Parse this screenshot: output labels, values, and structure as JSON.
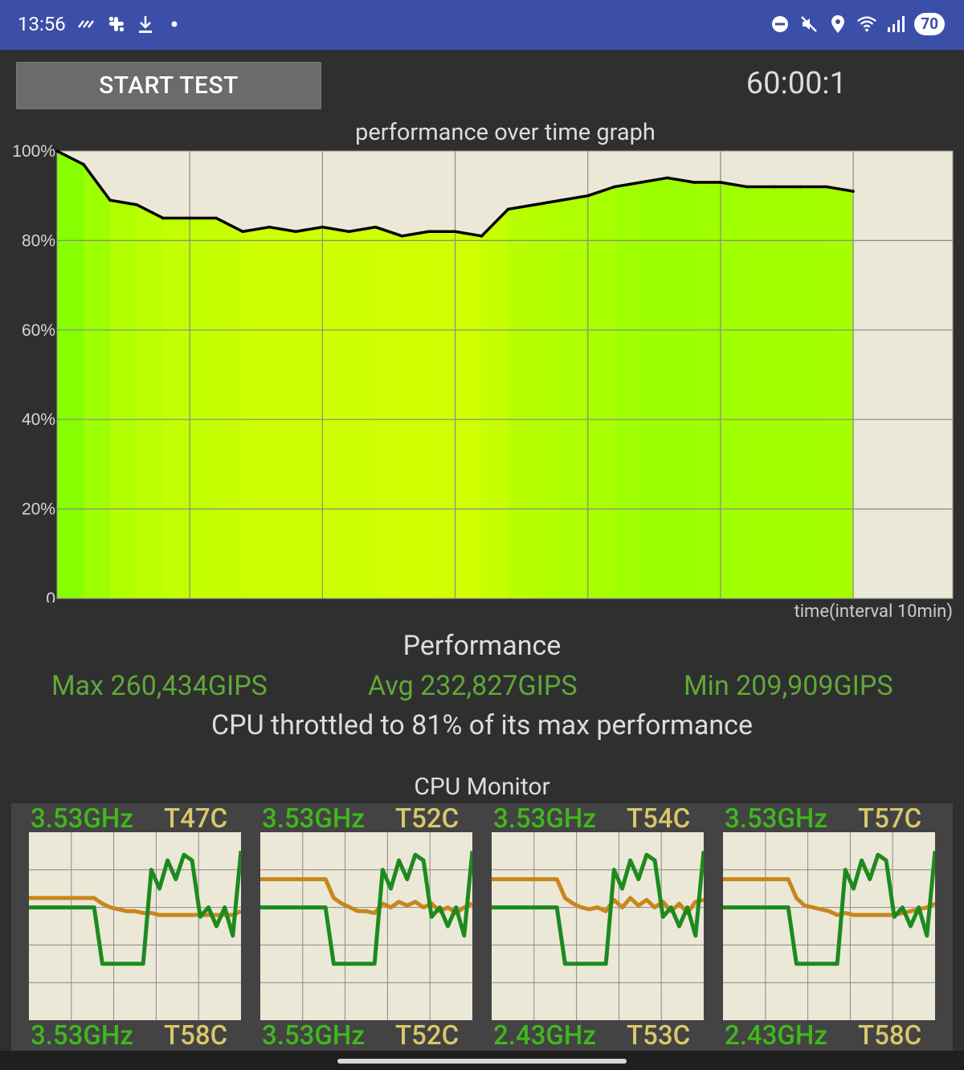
{
  "status_bar": {
    "time": "13:56",
    "left_icons": [
      "missed-call-icon",
      "slack-icon",
      "download-icon",
      "dot-icon"
    ],
    "right_icons": [
      "dnd-icon",
      "mute-icon",
      "location-icon",
      "wifi-icon",
      "signal-icon"
    ],
    "battery": "70"
  },
  "controls": {
    "start_label": "START TEST",
    "timer": "60:00:1"
  },
  "graph": {
    "title": "performance over time graph",
    "time_label": "time(interval 10min)",
    "y_ticks": [
      "100%",
      "80%",
      "60%",
      "40%",
      "20%",
      "0"
    ]
  },
  "performance": {
    "heading": "Performance",
    "max": "Max 260,434GIPS",
    "avg": "Avg 232,827GIPS",
    "min": "Min 209,909GIPS",
    "throttle": "CPU throttled to 81% of its max performance"
  },
  "cpu_monitor": {
    "title": "CPU Monitor",
    "cores": [
      {
        "freq": "3.53GHz",
        "temp": "T47C",
        "freq2": "3.53GHz",
        "temp2": "T58C"
      },
      {
        "freq": "3.53GHz",
        "temp": "T52C",
        "freq2": "3.53GHz",
        "temp2": "T52C"
      },
      {
        "freq": "3.53GHz",
        "temp": "T54C",
        "freq2": "2.43GHz",
        "temp2": "T53C"
      },
      {
        "freq": "3.53GHz",
        "temp": "T57C",
        "freq2": "2.43GHz",
        "temp2": "T58C"
      }
    ]
  },
  "chart_data": {
    "type": "area",
    "title": "performance over time graph",
    "xlabel": "time(interval 10min)",
    "ylabel": "",
    "ylim": [
      0,
      100
    ],
    "x_unit": "min",
    "x": [
      0,
      2,
      4,
      6,
      8,
      10,
      12,
      14,
      16,
      18,
      20,
      22,
      24,
      26,
      28,
      30,
      32,
      34,
      36,
      38,
      40,
      42,
      44,
      46,
      48,
      50,
      52,
      54,
      56,
      58,
      60
    ],
    "series": [
      {
        "values": [
          100,
          97,
          89,
          88,
          85,
          85,
          85,
          82,
          83,
          82,
          83,
          82,
          83,
          81,
          82,
          82,
          81,
          87,
          88,
          89,
          90,
          92,
          93,
          94,
          93,
          93,
          92,
          92,
          92,
          92,
          91
        ]
      }
    ],
    "grid": true,
    "colors": {
      "line": "#000000",
      "fill_high": "#7fff00",
      "fill_low": "#d8ff00",
      "background": "#ebe8d8"
    }
  },
  "cpu_chart_data": [
    {
      "type": "line",
      "series": [
        {
          "color": "#1e8a1e",
          "values": [
            60,
            60,
            60,
            60,
            60,
            60,
            60,
            60,
            60,
            30,
            30,
            30,
            30,
            30,
            30,
            80,
            70,
            85,
            75,
            88,
            85,
            55,
            60,
            50,
            60,
            45,
            90
          ]
        },
        {
          "color": "#c8861c",
          "values": [
            65,
            65,
            65,
            65,
            65,
            65,
            65,
            65,
            65,
            62,
            60,
            59,
            58,
            58,
            57,
            57,
            56,
            56,
            56,
            56,
            56,
            56,
            56,
            56,
            56,
            56,
            58
          ]
        }
      ]
    },
    {
      "type": "line",
      "series": [
        {
          "color": "#1e8a1e",
          "values": [
            60,
            60,
            60,
            60,
            60,
            60,
            60,
            60,
            60,
            30,
            30,
            30,
            30,
            30,
            30,
            80,
            70,
            85,
            75,
            88,
            85,
            55,
            60,
            50,
            60,
            45,
            90
          ]
        },
        {
          "color": "#c8861c",
          "values": [
            75,
            75,
            75,
            75,
            75,
            75,
            75,
            75,
            75,
            65,
            62,
            60,
            58,
            58,
            57,
            62,
            60,
            63,
            61,
            63,
            60,
            62,
            58,
            60,
            57,
            60,
            62
          ]
        }
      ]
    },
    {
      "type": "line",
      "series": [
        {
          "color": "#1e8a1e",
          "values": [
            60,
            60,
            60,
            60,
            60,
            60,
            60,
            60,
            60,
            30,
            30,
            30,
            30,
            30,
            30,
            80,
            70,
            85,
            75,
            88,
            85,
            55,
            60,
            50,
            60,
            45,
            90
          ]
        },
        {
          "color": "#c8861c",
          "values": [
            75,
            75,
            75,
            75,
            75,
            75,
            75,
            75,
            75,
            65,
            62,
            60,
            59,
            60,
            58,
            64,
            60,
            65,
            61,
            64,
            60,
            63,
            58,
            62,
            57,
            63,
            64
          ]
        }
      ]
    },
    {
      "type": "line",
      "series": [
        {
          "color": "#1e8a1e",
          "values": [
            60,
            60,
            60,
            60,
            60,
            60,
            60,
            60,
            60,
            30,
            30,
            30,
            30,
            30,
            30,
            80,
            70,
            85,
            75,
            88,
            85,
            55,
            60,
            50,
            60,
            45,
            90
          ]
        },
        {
          "color": "#c8861c",
          "values": [
            75,
            75,
            75,
            75,
            75,
            75,
            75,
            75,
            75,
            65,
            61,
            60,
            59,
            58,
            56,
            57,
            56,
            56,
            56,
            56,
            56,
            56,
            57,
            58,
            59,
            60,
            62
          ]
        }
      ]
    }
  ]
}
